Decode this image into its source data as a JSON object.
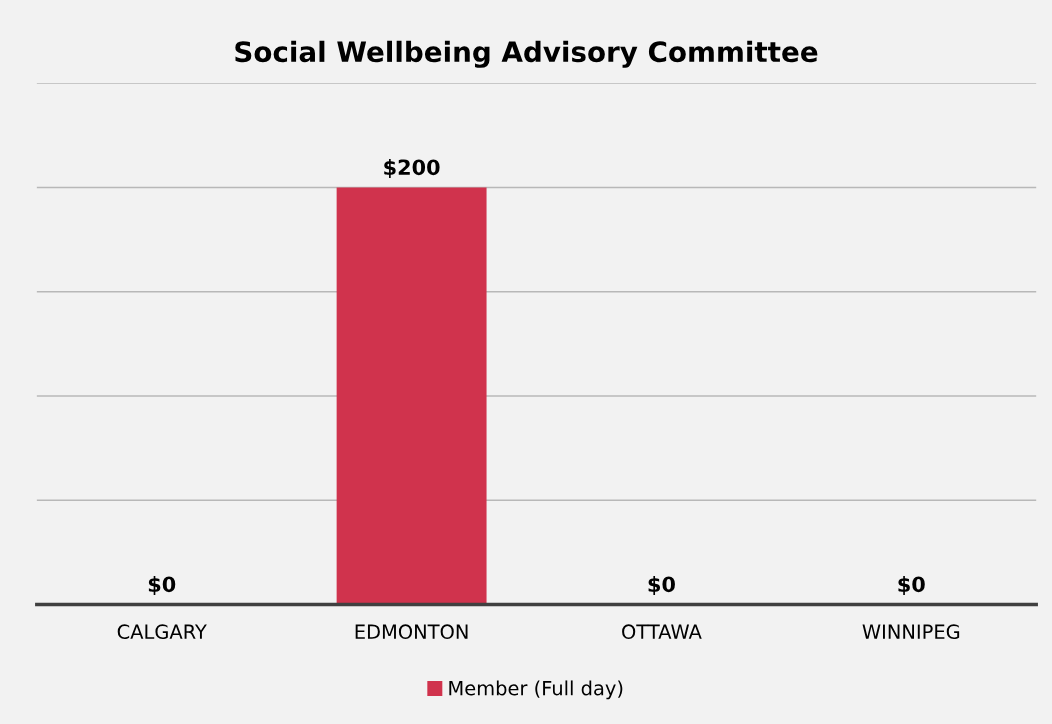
{
  "chart_data": {
    "type": "bar",
    "title": "Social Wellbeing Advisory Committee",
    "categories": [
      "CALGARY",
      "EDMONTON",
      "OTTAWA",
      "WINNIPEG"
    ],
    "series": [
      {
        "name": "Member (Full day)",
        "color": "#d0334d",
        "values": [
          0,
          200,
          0,
          0
        ],
        "value_labels": [
          "$0",
          "$200",
          "$0",
          "$0"
        ]
      }
    ],
    "ylim": [
      0,
      250
    ],
    "yticks": [
      {
        "value": 0,
        "label": null
      },
      {
        "value": 50,
        "label": null
      },
      {
        "value": 100,
        "label": null
      },
      {
        "value": 150,
        "label": null
      },
      {
        "value": 200,
        "label": null
      },
      {
        "value": 250,
        "label": null
      }
    ],
    "tick_labels": "x",
    "grid": "y",
    "legend": "bottom"
  }
}
